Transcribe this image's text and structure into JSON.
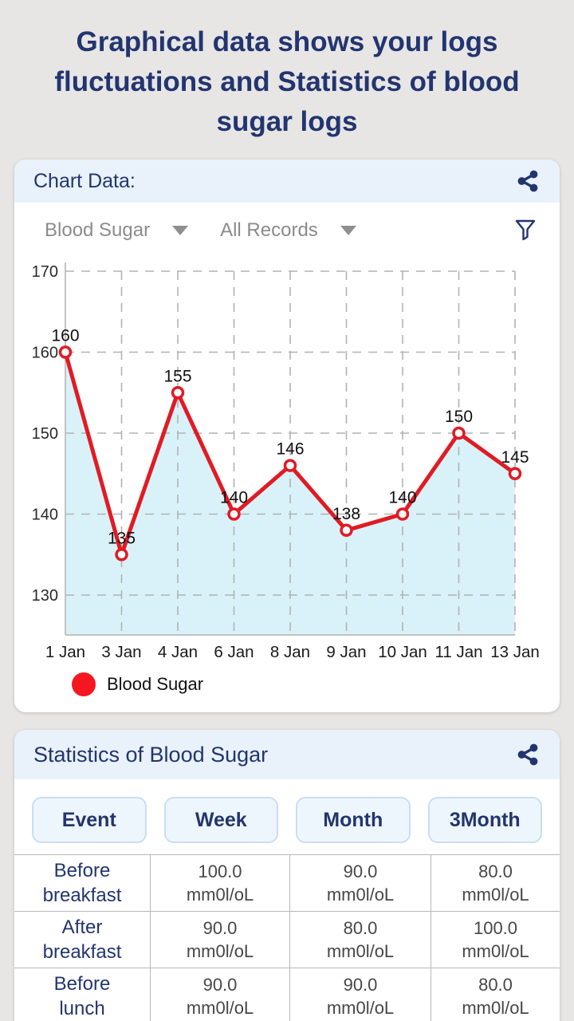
{
  "page": {
    "title": "Graphical data shows your logs fluctuations and Statistics of blood sugar logs"
  },
  "chart_card": {
    "title": "Chart Data:",
    "controls": {
      "metric_dropdown": "Blood Sugar",
      "range_dropdown": "All Records"
    },
    "legend_label": "Blood Sugar"
  },
  "chart_data": {
    "type": "line",
    "x": [
      "1 Jan",
      "3 Jan",
      "4 Jan",
      "6 Jan",
      "8 Jan",
      "9 Jan",
      "10 Jan",
      "11 Jan",
      "13 Jan"
    ],
    "series": [
      {
        "name": "Blood Sugar",
        "values": [
          160,
          135,
          155,
          140,
          146,
          138,
          140,
          150,
          145
        ]
      }
    ],
    "y_ticks": [
      130,
      140,
      150,
      160,
      170
    ],
    "ylim": [
      125,
      172
    ],
    "grid": "dashed",
    "data_labels": true,
    "legend_position": "bottom-left",
    "line_color": "#e01b24",
    "marker": "open-circle",
    "area_fill": "#d9f2f9"
  },
  "stats_card": {
    "title": "Statistics of Blood Sugar",
    "tabs": [
      "Event",
      "Week",
      "Month",
      "3Month"
    ],
    "rows": [
      {
        "label": "Before breakfast",
        "values": [
          {
            "value": "100.0",
            "unit": "mm0l/oL"
          },
          {
            "value": "90.0",
            "unit": "mm0l/oL"
          },
          {
            "value": "80.0",
            "unit": "mm0l/oL"
          }
        ]
      },
      {
        "label": "After breakfast",
        "values": [
          {
            "value": "90.0",
            "unit": "mm0l/oL"
          },
          {
            "value": "80.0",
            "unit": "mm0l/oL"
          },
          {
            "value": "100.0",
            "unit": "mm0l/oL"
          }
        ]
      },
      {
        "label": "Before lunch",
        "values": [
          {
            "value": "90.0",
            "unit": "mm0l/oL"
          },
          {
            "value": "90.0",
            "unit": "mm0l/oL"
          },
          {
            "value": "80.0",
            "unit": "mm0l/oL"
          }
        ]
      }
    ]
  },
  "icons": {
    "share": "share-icon",
    "filter": "filter-icon",
    "dropdown_caret": "chevron-down-icon"
  },
  "colors": {
    "accent_navy": "#233570",
    "line_red": "#e01b24",
    "area_fill": "#d9f2f9",
    "header_bg": "#e9f1fa",
    "page_bg": "#e7e6e4",
    "legend_dot": "#f51720"
  }
}
